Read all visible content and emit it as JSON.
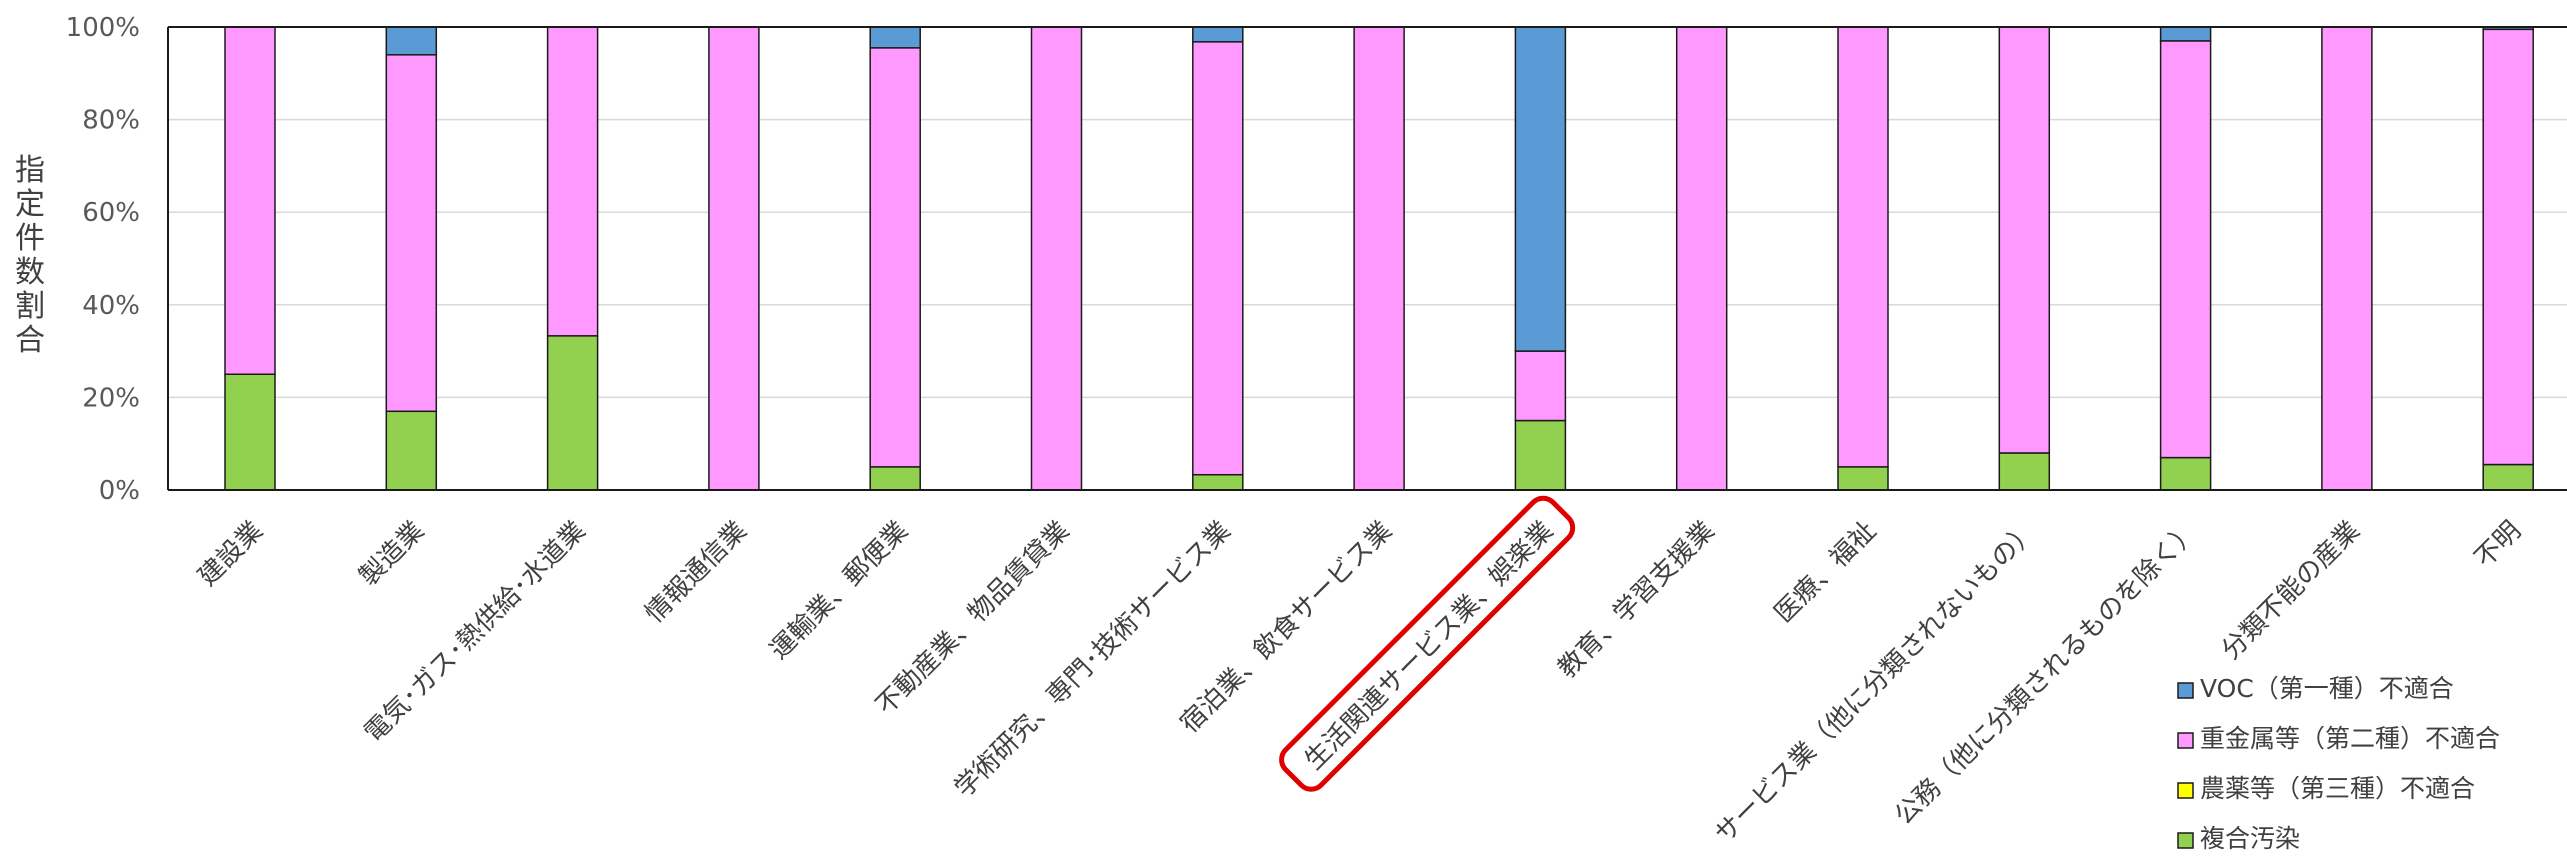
{
  "chart_data": {
    "type": "bar",
    "stacked": true,
    "percent": true,
    "ylabel": "指定件数割合",
    "ylim": [
      0,
      100
    ],
    "yticks": [
      "0%",
      "20%",
      "40%",
      "60%",
      "80%",
      "100%"
    ],
    "grid": true,
    "legend_position": "bottom-right",
    "categories": [
      "建設業",
      "製造業",
      "電気･ガス･熱供給･水道業",
      "情報通信業",
      "運輸業、郵便業",
      "不動産業、物品賃貸業",
      "学術研究、専門･技術サービス業",
      "宿泊業、飲食サービス業",
      "生活関連サービス業、娯楽業",
      "教育、学習支援業",
      "医療、福祉",
      "サービス業（他に分類されないもの）",
      "公務（他に分類されるものを除く）",
      "分類不能の産業",
      "不明"
    ],
    "highlight_category": "生活関連サービス業、娯楽業",
    "highlight_color": "#e00000",
    "series": [
      {
        "name": "複合汚染",
        "color": "#92d050",
        "values": [
          25,
          17,
          33.3,
          0,
          5,
          0,
          3.3,
          0,
          15,
          0,
          5,
          8,
          7,
          0,
          5.5
        ]
      },
      {
        "name": "農薬等（第三種）不適合",
        "color": "#ffff00",
        "values": [
          0,
          0,
          0,
          0,
          0,
          0,
          0,
          0,
          0,
          0,
          0,
          0,
          0,
          0,
          0
        ]
      },
      {
        "name": "重金属等（第二種）不適合",
        "color": "#ff99ff",
        "values": [
          75,
          77,
          66.7,
          100,
          90.5,
          100,
          93.5,
          100,
          15,
          100,
          95,
          92,
          90,
          100,
          94
        ]
      },
      {
        "name": "VOC（第一種）不適合",
        "color": "#5b9bd5",
        "values": [
          0,
          6,
          0,
          0,
          4.5,
          0,
          3.2,
          0,
          70,
          0,
          0,
          0,
          3,
          0,
          0.5
        ]
      }
    ]
  }
}
